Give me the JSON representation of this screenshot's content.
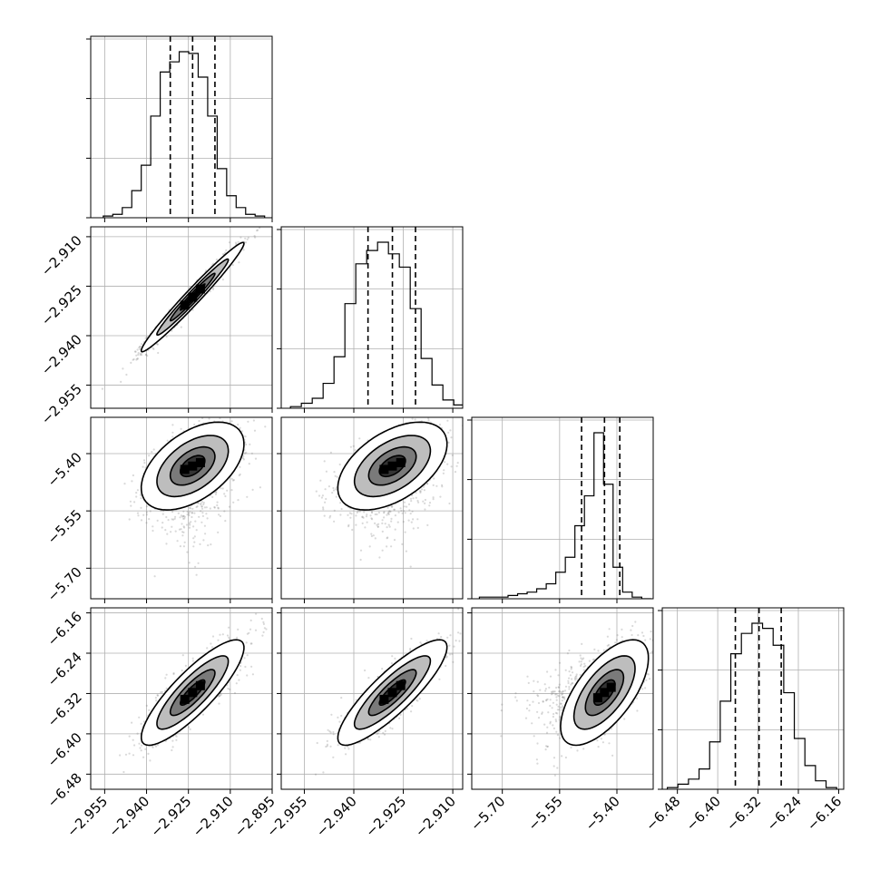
{
  "chart_data": {
    "type": "corner",
    "params": [
      {
        "range": [
          -2.96,
          -2.895
        ],
        "ticks": [
          -2.955,
          -2.94,
          -2.925,
          -2.91,
          -2.895
        ],
        "labels": [
          "−2.955",
          "−2.940",
          "−2.925",
          "−2.910",
          "−2.895"
        ]
      },
      {
        "range": [
          -2.962,
          -2.907
        ],
        "ticks": [
          -2.955,
          -2.94,
          -2.925,
          -2.91
        ],
        "labels": [
          "−2.955",
          "−2.940",
          "−2.925",
          "−2.910"
        ]
      },
      {
        "range": [
          -5.78,
          -5.305
        ],
        "ticks": [
          -5.7,
          -5.55,
          -5.4
        ],
        "labels": [
          "−5.70",
          "−5.55",
          "−5.40"
        ]
      },
      {
        "range": [
          -6.51,
          -6.15
        ],
        "ticks": [
          -6.48,
          -6.4,
          -6.32,
          -6.24,
          -6.16
        ],
        "labels": [
          "−6.48",
          "−6.40",
          "−6.32",
          "−6.24",
          "−6.16"
        ]
      }
    ],
    "quantiles": [
      [
        -2.9315,
        -2.9235,
        -2.9155
      ],
      [
        -2.9357,
        -2.9283,
        -2.9213
      ],
      [
        -5.4925,
        -5.4325,
        -5.3925
      ],
      [
        -6.365,
        -6.318,
        -6.274
      ]
    ],
    "histograms": [
      {
        "edges": [
          -2.9555,
          -2.9521,
          -2.9487,
          -2.9453,
          -2.9419,
          -2.9385,
          -2.9351,
          -2.9317,
          -2.9283,
          -2.9249,
          -2.9215,
          -2.9181,
          -2.9147,
          -2.9113,
          -2.9079,
          -2.9045,
          -2.9011,
          -2.8977
        ],
        "counts": [
          0.01,
          0.02,
          0.06,
          0.16,
          0.31,
          0.6,
          0.86,
          0.92,
          0.98,
          0.97,
          0.83,
          0.6,
          0.29,
          0.13,
          0.06,
          0.02,
          0.01
        ]
      },
      {
        "edges": [
          -2.9592,
          -2.9559,
          -2.9526,
          -2.9493,
          -2.946,
          -2.9427,
          -2.9394,
          -2.9361,
          -2.9328,
          -2.9295,
          -2.9262,
          -2.9229,
          -2.9196,
          -2.9163,
          -2.913,
          -2.9097,
          -2.9064,
          -2.9031
        ],
        "counts": [
          0.01,
          0.03,
          0.06,
          0.15,
          0.31,
          0.63,
          0.87,
          0.95,
          1.0,
          0.93,
          0.85,
          0.6,
          0.3,
          0.14,
          0.05,
          0.02,
          0.01
        ]
      },
      {
        "edges": [
          -5.76,
          -5.735,
          -5.71,
          -5.685,
          -5.66,
          -5.635,
          -5.61,
          -5.585,
          -5.56,
          -5.535,
          -5.51,
          -5.485,
          -5.46,
          -5.435,
          -5.41,
          -5.385,
          -5.36,
          -5.335,
          -5.31
        ],
        "counts": [
          0.01,
          0.01,
          0.01,
          0.02,
          0.03,
          0.04,
          0.06,
          0.09,
          0.16,
          0.25,
          0.44,
          0.62,
          1.0,
          0.69,
          0.19,
          0.04,
          0.01,
          0.0
        ]
      },
      {
        "edges": [
          -6.5,
          -6.479,
          -6.458,
          -6.437,
          -6.416,
          -6.395,
          -6.374,
          -6.353,
          -6.332,
          -6.311,
          -6.29,
          -6.269,
          -6.248,
          -6.227,
          -6.206,
          -6.185,
          -6.164
        ],
        "counts": [
          0.01,
          0.03,
          0.06,
          0.12,
          0.28,
          0.52,
          0.8,
          0.92,
          0.98,
          0.95,
          0.85,
          0.57,
          0.3,
          0.14,
          0.05,
          0.01
        ]
      }
    ],
    "correlations": [
      [
        1,
        0.98,
        0.5,
        0.85
      ],
      [
        0.98,
        1,
        0.5,
        0.86
      ],
      [
        0.5,
        0.5,
        1,
        0.65
      ],
      [
        0.85,
        0.86,
        0.65,
        1
      ]
    ],
    "contour_levels": [
      "0.5σ",
      "1σ",
      "1.5σ",
      "2σ"
    ],
    "grid": true,
    "colors": {
      "points": "#777777",
      "contour_fill": "#000000",
      "hist": "#000000",
      "grid": "#b0b0b0"
    }
  }
}
